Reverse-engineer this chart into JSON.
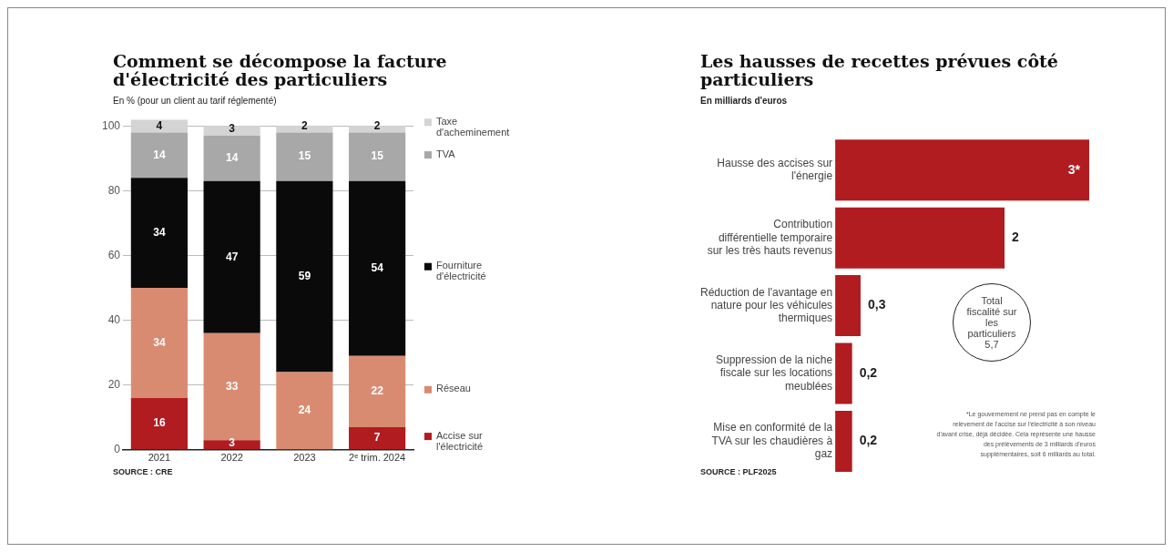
{
  "chart_data": [
    {
      "type": "bar",
      "title": "Comment se décompose la facture d'électricité des particuliers",
      "subtitle": "En % (pour un client au tarif réglementé)",
      "categories": [
        "2021",
        "2022",
        "2023",
        "2ᵉ trim. 2024"
      ],
      "stacked": true,
      "series": [
        {
          "name": "Accise sur l'électricité",
          "color": "#b01c20",
          "values": [
            16,
            3,
            null,
            7
          ]
        },
        {
          "name": "Réseau",
          "color": "#d98b72",
          "values": [
            34,
            33,
            24,
            22
          ]
        },
        {
          "name": "Fourniture d'électricité",
          "color": "#0a0a0a",
          "values": [
            34,
            47,
            59,
            54
          ]
        },
        {
          "name": "TVA",
          "color": "#a8a8a8",
          "values": [
            14,
            14,
            15,
            15
          ]
        },
        {
          "name": "Taxe d'acheminement",
          "color": "#d4d4d4",
          "values": [
            4,
            3,
            2,
            2
          ]
        }
      ],
      "ylim": [
        0,
        102
      ],
      "yticks": [
        0,
        20,
        40,
        60,
        80,
        100
      ],
      "grid": "y",
      "legend": "right",
      "data_labels": true,
      "annotations": [
        "SOURCE : CRE"
      ]
    },
    {
      "type": "bar",
      "orientation": "horizontal",
      "title": "Les hausses de recettes prévues côté particuliers",
      "subtitle": "En milliards d'euros",
      "categories": [
        "Hausse des accises sur l'énergie",
        "Contribution différentielle temporaire sur les très hauts revenus",
        "Réduction de l'avantage en nature pour les véhicules thermiques",
        "Suppression de la niche fiscale sur les locations meublées",
        "Mise en conformité de la TVA sur les chaudières à gaz"
      ],
      "values": [
        3,
        2,
        0.3,
        0.2,
        0.2
      ],
      "value_labels": [
        "3*",
        "2",
        "0,3",
        "0,2",
        "0,2"
      ],
      "color": "#b01c20",
      "xlim": [
        0,
        3
      ],
      "tick_labels": "y",
      "annotations": [
        "Total fiscalité sur les particuliers 5,7",
        "*Le gouvernement ne prend pas en compte le relèvement de l'accise sur l'électricité à son niveau d'avant crise, déjà décidée. Cela représente une hausse des prélèvements de 3 milliards d'euros supplémentaires, soit 6 milliards au total.",
        "SOURCE : PLF2025"
      ]
    }
  ]
}
